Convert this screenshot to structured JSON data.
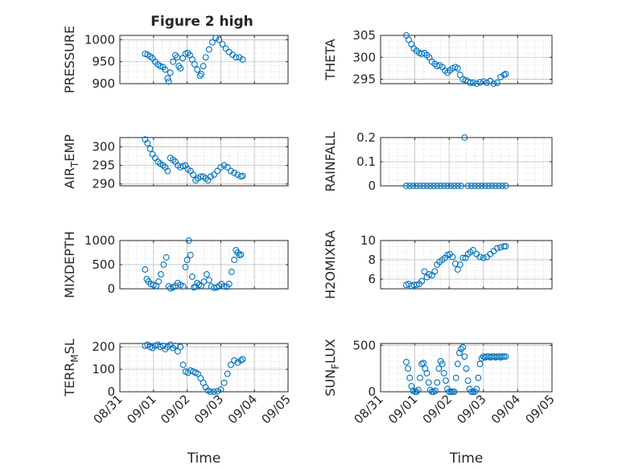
{
  "figure_title": "Figure 2 high",
  "colors": {
    "marker": "#0072BD",
    "grid": "#c9c9c9",
    "axis": "#262626"
  },
  "chart_data": [
    {
      "type": "scatter",
      "ylabel": "PRESSURE",
      "ylabel_sub": "",
      "ylim": [
        900,
        1010
      ],
      "yticks": [
        900,
        950,
        1000
      ],
      "ytick_labels": [
        "900",
        "950",
        "1000"
      ],
      "xlim": [
        0,
        5
      ],
      "xticks": [],
      "xtick_labels": [],
      "x": [
        0.75,
        0.82,
        0.9,
        0.97,
        1.05,
        1.13,
        1.2,
        1.28,
        1.35,
        1.42,
        1.45,
        1.5,
        1.58,
        1.65,
        1.7,
        1.75,
        1.8,
        1.87,
        1.95,
        2.02,
        2.08,
        2.15,
        2.22,
        2.3,
        2.38,
        2.42,
        2.48,
        2.55,
        2.65,
        2.75,
        2.85,
        2.95,
        3.05,
        3.15,
        3.25,
        3.35,
        3.45,
        3.55,
        3.65
      ],
      "y": [
        968,
        966,
        962,
        958,
        950,
        944,
        940,
        938,
        932,
        912,
        905,
        925,
        950,
        965,
        960,
        940,
        935,
        958,
        968,
        970,
        965,
        955,
        944,
        932,
        918,
        922,
        940,
        960,
        978,
        994,
        1004,
        1000,
        990,
        980,
        972,
        966,
        960,
        960,
        955
      ]
    },
    {
      "type": "scatter",
      "ylabel": "THETA",
      "ylabel_sub": "",
      "ylim": [
        294,
        305
      ],
      "yticks": [
        295,
        300,
        305
      ],
      "ytick_labels": [
        "295",
        "300",
        "305"
      ],
      "xlim": [
        0,
        5
      ],
      "xticks": [],
      "xtick_labels": [],
      "x": [
        0.75,
        0.82,
        0.9,
        0.97,
        1.05,
        1.13,
        1.2,
        1.28,
        1.35,
        1.42,
        1.5,
        1.58,
        1.65,
        1.72,
        1.8,
        1.88,
        1.95,
        2.02,
        2.1,
        2.18,
        2.25,
        2.32,
        2.4,
        2.48,
        2.55,
        2.62,
        2.7,
        2.8,
        2.9,
        3.0,
        3.1,
        3.2,
        3.3,
        3.4,
        3.5,
        3.6,
        3.65
      ],
      "y": [
        305,
        304,
        303,
        302,
        301.5,
        301,
        300.8,
        301,
        300.5,
        300,
        299,
        298.5,
        298,
        298.2,
        297.8,
        297,
        296.5,
        297,
        297.5,
        297.8,
        297.5,
        296,
        295,
        294.8,
        294.5,
        294.2,
        294.2,
        294,
        294.3,
        294.5,
        294.2,
        294.6,
        294,
        294.2,
        295.5,
        296,
        296.2
      ]
    },
    {
      "type": "scatter",
      "ylabel": "AIR",
      "ylabel_sub": "T",
      "ylabel_suffix": "EMP",
      "ylim": [
        289.5,
        302.5
      ],
      "yticks": [
        290,
        295,
        300
      ],
      "ytick_labels": [
        "290",
        "295",
        "300"
      ],
      "xlim": [
        0,
        5
      ],
      "xticks": [],
      "xtick_labels": [],
      "x": [
        0.75,
        0.82,
        0.9,
        0.97,
        1.05,
        1.13,
        1.2,
        1.28,
        1.35,
        1.42,
        1.5,
        1.58,
        1.65,
        1.72,
        1.8,
        1.88,
        1.95,
        2.02,
        2.1,
        2.18,
        2.25,
        2.32,
        2.4,
        2.48,
        2.55,
        2.62,
        2.7,
        2.8,
        2.9,
        3.0,
        3.1,
        3.2,
        3.3,
        3.4,
        3.5,
        3.6,
        3.65
      ],
      "y": [
        302,
        301,
        299.5,
        298,
        297,
        296,
        295.5,
        295,
        294.5,
        293.5,
        297,
        296.5,
        296,
        295,
        294.5,
        294.8,
        295,
        294,
        293.5,
        292.5,
        291,
        291.5,
        292,
        292,
        291.5,
        291,
        292,
        292.5,
        293.5,
        294.5,
        295,
        294.5,
        293.5,
        293,
        292.5,
        292,
        292.2
      ]
    },
    {
      "type": "scatter",
      "ylabel": "RAINFALL",
      "ylabel_sub": "",
      "ylim": [
        0,
        0.2
      ],
      "yticks": [
        0,
        0.1,
        0.2
      ],
      "ytick_labels": [
        "0",
        "0.1",
        "0.2"
      ],
      "xlim": [
        0,
        5
      ],
      "xticks": [],
      "xtick_labels": [],
      "x": [
        0.75,
        0.85,
        0.95,
        1.05,
        1.15,
        1.25,
        1.35,
        1.45,
        1.55,
        1.65,
        1.75,
        1.85,
        1.95,
        2.05,
        2.15,
        2.25,
        2.35,
        2.45,
        2.55,
        2.65,
        2.75,
        2.85,
        2.95,
        3.05,
        3.15,
        3.25,
        3.35,
        3.45,
        3.55,
        3.65
      ],
      "y": [
        0,
        0,
        0,
        0,
        0,
        0,
        0,
        0,
        0,
        0,
        0,
        0,
        0,
        0,
        0,
        0,
        0,
        0.2,
        0,
        0,
        0,
        0,
        0,
        0,
        0,
        0,
        0,
        0,
        0,
        0
      ]
    },
    {
      "type": "scatter",
      "ylabel": "MIXDEPTH",
      "ylabel_sub": "",
      "ylim": [
        0,
        1000
      ],
      "yticks": [
        0,
        500,
        1000
      ],
      "ytick_labels": [
        "0",
        "500",
        "1000"
      ],
      "xlim": [
        0,
        5
      ],
      "xticks": [],
      "xtick_labels": [],
      "x": [
        0.75,
        0.8,
        0.85,
        0.92,
        1.0,
        1.08,
        1.15,
        1.22,
        1.3,
        1.38,
        1.45,
        1.5,
        1.58,
        1.65,
        1.72,
        1.8,
        1.88,
        1.95,
        2.0,
        2.05,
        2.1,
        2.15,
        2.2,
        2.25,
        2.3,
        2.35,
        2.42,
        2.5,
        2.58,
        2.65,
        2.72,
        2.8,
        2.88,
        2.95,
        3.02,
        3.1,
        3.18,
        3.25,
        3.32,
        3.4,
        3.45,
        3.5,
        3.55,
        3.6
      ],
      "y": [
        400,
        200,
        150,
        100,
        80,
        60,
        150,
        300,
        500,
        650,
        50,
        10,
        30,
        60,
        120,
        80,
        50,
        450,
        600,
        1000,
        700,
        250,
        30,
        40,
        120,
        80,
        60,
        150,
        300,
        180,
        50,
        20,
        30,
        60,
        100,
        50,
        40,
        100,
        350,
        600,
        800,
        750,
        700,
        710
      ]
    },
    {
      "type": "scatter",
      "ylabel": "H2OMIXRA",
      "ylabel_sub": "",
      "ylim": [
        5,
        10
      ],
      "yticks": [
        6,
        8,
        10
      ],
      "ytick_labels": [
        "6",
        "8",
        "10"
      ],
      "xlim": [
        0,
        5
      ],
      "xticks": [],
      "xtick_labels": [],
      "x": [
        0.75,
        0.82,
        0.9,
        0.97,
        1.05,
        1.13,
        1.2,
        1.28,
        1.35,
        1.42,
        1.5,
        1.58,
        1.65,
        1.72,
        1.8,
        1.88,
        1.95,
        2.02,
        2.1,
        2.18,
        2.25,
        2.32,
        2.4,
        2.48,
        2.55,
        2.62,
        2.7,
        2.8,
        2.9,
        3.0,
        3.1,
        3.2,
        3.3,
        3.4,
        3.5,
        3.6,
        3.65
      ],
      "y": [
        5.4,
        5.5,
        5.3,
        5.4,
        5.4,
        5.5,
        5.8,
        6.8,
        6.2,
        6.5,
        6.4,
        6.8,
        7.5,
        7.8,
        8,
        8.2,
        8.5,
        8.6,
        8.3,
        7.6,
        7.0,
        7.5,
        8.2,
        8.2,
        8.6,
        8.8,
        9.0,
        8.6,
        8.3,
        8.2,
        8.3,
        8.6,
        8.9,
        9.2,
        9.3,
        9.4,
        9.4
      ]
    },
    {
      "type": "scatter",
      "ylabel": "TERR",
      "ylabel_sub": "M",
      "ylabel_suffix": "SL",
      "ylim": [
        0,
        215
      ],
      "yticks": [
        0,
        100,
        200
      ],
      "ytick_labels": [
        "0",
        "100",
        "200"
      ],
      "xlim": [
        0,
        5
      ],
      "xticks": [
        0,
        1,
        2,
        3,
        4,
        5
      ],
      "xtick_labels": [
        "08/31",
        "09/01",
        "09/02",
        "09/03",
        "09/04",
        "09/05"
      ],
      "xlabel": "Time",
      "x": [
        0.75,
        0.82,
        0.9,
        0.97,
        1.05,
        1.13,
        1.2,
        1.28,
        1.35,
        1.42,
        1.5,
        1.58,
        1.65,
        1.72,
        1.8,
        1.88,
        1.95,
        2.02,
        2.1,
        2.18,
        2.25,
        2.32,
        2.4,
        2.48,
        2.55,
        2.62,
        2.7,
        2.8,
        2.9,
        3.0,
        3.1,
        3.2,
        3.3,
        3.4,
        3.5,
        3.6,
        3.65
      ],
      "y": [
        205,
        210,
        200,
        195,
        205,
        210,
        200,
        205,
        190,
        200,
        210,
        195,
        205,
        180,
        200,
        120,
        90,
        85,
        95,
        90,
        85,
        80,
        60,
        40,
        20,
        5,
        0,
        0,
        2,
        10,
        40,
        80,
        120,
        140,
        130,
        140,
        145
      ]
    },
    {
      "type": "scatter",
      "ylabel": "SUN",
      "ylabel_sub": "F",
      "ylabel_suffix": "LUX",
      "ylim": [
        0,
        520
      ],
      "yticks": [
        0,
        500
      ],
      "ytick_labels": [
        "0",
        "500"
      ],
      "xlim": [
        0,
        5
      ],
      "xticks": [
        0,
        1,
        2,
        3,
        4,
        5
      ],
      "xtick_labels": [
        "08/31",
        "09/01",
        "09/02",
        "09/03",
        "09/04",
        "09/05"
      ],
      "xlabel": "Time",
      "x": [
        0.75,
        0.8,
        0.85,
        0.9,
        0.95,
        1.0,
        1.05,
        1.1,
        1.15,
        1.2,
        1.25,
        1.3,
        1.35,
        1.4,
        1.45,
        1.5,
        1.55,
        1.6,
        1.65,
        1.7,
        1.75,
        1.8,
        1.85,
        1.9,
        1.95,
        2.0,
        2.05,
        2.1,
        2.15,
        2.2,
        2.25,
        2.3,
        2.35,
        2.4,
        2.45,
        2.5,
        2.55,
        2.6,
        2.65,
        2.7,
        2.75,
        2.8,
        2.85,
        2.9,
        2.95,
        3.0,
        3.05,
        3.1,
        3.15,
        3.2,
        3.25,
        3.3,
        3.35,
        3.4,
        3.45,
        3.5,
        3.55,
        3.6,
        3.65
      ],
      "y": [
        320,
        250,
        150,
        60,
        10,
        0,
        0,
        20,
        150,
        300,
        310,
        250,
        200,
        100,
        20,
        0,
        0,
        10,
        100,
        250,
        330,
        300,
        200,
        120,
        30,
        0,
        0,
        0,
        0,
        150,
        300,
        420,
        460,
        480,
        380,
        250,
        120,
        30,
        0,
        0,
        0,
        30,
        150,
        300,
        360,
        380,
        370,
        380,
        380,
        370,
        380,
        380,
        370,
        380,
        380,
        370,
        380,
        380,
        380
      ]
    }
  ]
}
